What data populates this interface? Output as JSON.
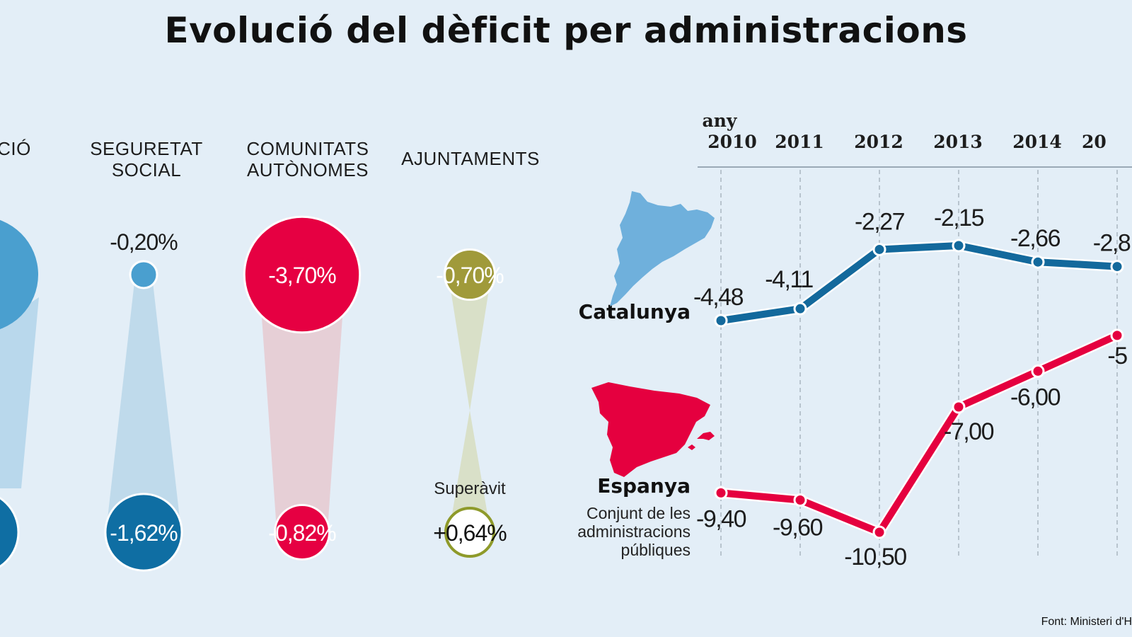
{
  "title": "Evolució del dèficit per administracions",
  "chart_data": [
    {
      "type": "bubble",
      "title": "Dèficit per administracions",
      "categories": [
        {
          "label_lines": [
            "CIÓ"
          ],
          "top_value": null,
          "top_label": "",
          "bottom_value": null,
          "bottom_label": "",
          "color": "#4a9fcf",
          "bottom_color": "#0f6ea3"
        },
        {
          "label_lines": [
            "SEGURETAT",
            "SOCIAL"
          ],
          "top_value": -0.2,
          "top_label": "-0,20%",
          "bottom_value": -1.62,
          "bottom_label": "-1,62%",
          "color": "#4a9fcf",
          "bottom_color": "#0f6ea3"
        },
        {
          "label_lines": [
            "COMUNITATS",
            "AUTÒNOMES"
          ],
          "top_value": -3.7,
          "top_label": "-3,70%",
          "bottom_value": -0.82,
          "bottom_label": "-0,82%",
          "color": "#e60042",
          "bottom_color": "#e60042"
        },
        {
          "label_lines": [
            "AJUNTAMENTS"
          ],
          "top_value": -0.7,
          "top_label": "-0,70%",
          "bottom_value": 0.64,
          "bottom_label": "+0,64%",
          "bottom_note": "Superàvit",
          "color": "#a09a3a",
          "bottom_color": "#ffffff"
        }
      ]
    },
    {
      "type": "line",
      "x_caption": "any",
      "x": [
        "2010",
        "2011",
        "2012",
        "2013",
        "2014",
        "20"
      ],
      "series": [
        {
          "name": "Catalunya",
          "color": "#13699c",
          "values": [
            -4.48,
            -4.11,
            -2.27,
            -2.15,
            -2.66,
            -2.8
          ],
          "labels": [
            "-4,48",
            "-4,11",
            "-2,27",
            "-2,15",
            "-2,66",
            "-2,8"
          ]
        },
        {
          "name": "Espanya",
          "subtitle": "Conjunt de les administracions públiques",
          "color": "#e5003f",
          "values": [
            -9.4,
            -9.6,
            -10.5,
            -7.0,
            -6.0,
            -5.0
          ],
          "labels": [
            "-9,40",
            "-9,60",
            "-10,50",
            "-7,00",
            "-6,00",
            "-5"
          ]
        }
      ]
    }
  ],
  "legend": {
    "catalunya": "Catalunya",
    "espanya": "Espanya",
    "espanya_sub": [
      "Conjunt de les",
      "administracions",
      "públiques"
    ]
  },
  "source": "Font: Ministeri d'H"
}
